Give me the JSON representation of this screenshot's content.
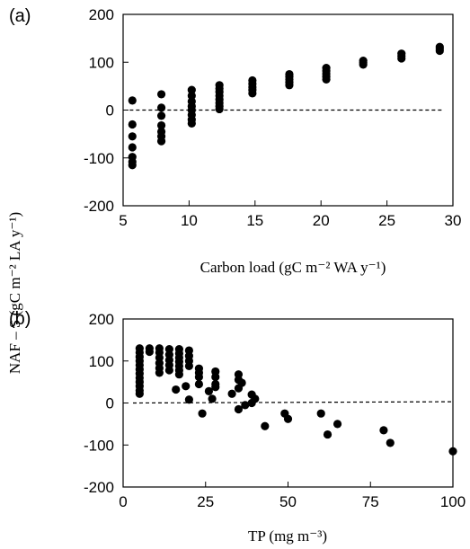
{
  "ylabel_shared": "NAF – S  (gC m⁻² LA y⁻¹)",
  "chart_data": [
    {
      "type": "scatter",
      "panel_label": "(a)",
      "xlabel": "Carbon load (gC m⁻² WA y⁻¹)",
      "ylabel": "NAF – S  (gC m⁻² LA y⁻¹)",
      "xlim": [
        5,
        30
      ],
      "ylim": [
        -200,
        200
      ],
      "xticks": [
        5,
        10,
        15,
        20,
        25,
        30
      ],
      "yticks": [
        -200,
        -100,
        0,
        100,
        200
      ],
      "reference_line": {
        "y": 0,
        "style": "dashed",
        "x_from": 5.5,
        "x_to": 29.2
      },
      "grid": false,
      "points": [
        {
          "x": 5.7,
          "y": 20
        },
        {
          "x": 5.7,
          "y": -30
        },
        {
          "x": 5.7,
          "y": -55
        },
        {
          "x": 5.7,
          "y": -78
        },
        {
          "x": 5.7,
          "y": -98
        },
        {
          "x": 5.7,
          "y": -108
        },
        {
          "x": 5.7,
          "y": -115
        },
        {
          "x": 7.9,
          "y": 33
        },
        {
          "x": 7.9,
          "y": 5
        },
        {
          "x": 7.9,
          "y": -12
        },
        {
          "x": 7.9,
          "y": -32
        },
        {
          "x": 7.9,
          "y": -45
        },
        {
          "x": 7.9,
          "y": -55
        },
        {
          "x": 7.9,
          "y": -65
        },
        {
          "x": 10.2,
          "y": 42
        },
        {
          "x": 10.2,
          "y": 30
        },
        {
          "x": 10.2,
          "y": 18
        },
        {
          "x": 10.2,
          "y": 8
        },
        {
          "x": 10.2,
          "y": 0
        },
        {
          "x": 10.2,
          "y": -10
        },
        {
          "x": 10.2,
          "y": -20
        },
        {
          "x": 10.2,
          "y": -28
        },
        {
          "x": 12.3,
          "y": 52
        },
        {
          "x": 12.3,
          "y": 45
        },
        {
          "x": 12.3,
          "y": 38
        },
        {
          "x": 12.3,
          "y": 30
        },
        {
          "x": 12.3,
          "y": 22
        },
        {
          "x": 12.3,
          "y": 15
        },
        {
          "x": 12.3,
          "y": 8
        },
        {
          "x": 12.3,
          "y": 2
        },
        {
          "x": 14.8,
          "y": 62
        },
        {
          "x": 14.8,
          "y": 55
        },
        {
          "x": 14.8,
          "y": 48
        },
        {
          "x": 14.8,
          "y": 42
        },
        {
          "x": 14.8,
          "y": 35
        },
        {
          "x": 17.6,
          "y": 75
        },
        {
          "x": 17.6,
          "y": 70
        },
        {
          "x": 17.6,
          "y": 64
        },
        {
          "x": 17.6,
          "y": 58
        },
        {
          "x": 17.6,
          "y": 52
        },
        {
          "x": 20.4,
          "y": 88
        },
        {
          "x": 20.4,
          "y": 82
        },
        {
          "x": 20.4,
          "y": 76
        },
        {
          "x": 20.4,
          "y": 70
        },
        {
          "x": 20.4,
          "y": 64
        },
        {
          "x": 23.2,
          "y": 103
        },
        {
          "x": 23.2,
          "y": 99
        },
        {
          "x": 23.2,
          "y": 95
        },
        {
          "x": 26.1,
          "y": 118
        },
        {
          "x": 26.1,
          "y": 113
        },
        {
          "x": 26.1,
          "y": 108
        },
        {
          "x": 29.0,
          "y": 132
        },
        {
          "x": 29.0,
          "y": 128
        },
        {
          "x": 29.0,
          "y": 124
        }
      ]
    },
    {
      "type": "scatter",
      "panel_label": "(b)",
      "xlabel": "TP (mg m⁻³)",
      "ylabel": "NAF – S  (gC m⁻² LA y⁻¹)",
      "xlim": [
        0,
        100
      ],
      "ylim": [
        -200,
        200
      ],
      "xticks": [
        0,
        25,
        50,
        75,
        100
      ],
      "yticks": [
        -200,
        -100,
        0,
        100,
        200
      ],
      "reference_line": {
        "y": 0,
        "style": "dashed",
        "x_from": 3,
        "x_to": 100,
        "y_end": 3
      },
      "grid": false,
      "points": [
        {
          "x": 5,
          "y": 130
        },
        {
          "x": 5,
          "y": 120
        },
        {
          "x": 5,
          "y": 110
        },
        {
          "x": 5,
          "y": 100
        },
        {
          "x": 5,
          "y": 90
        },
        {
          "x": 5,
          "y": 80
        },
        {
          "x": 5,
          "y": 70
        },
        {
          "x": 5,
          "y": 60
        },
        {
          "x": 5,
          "y": 50
        },
        {
          "x": 5,
          "y": 40
        },
        {
          "x": 5,
          "y": 30
        },
        {
          "x": 5,
          "y": 22
        },
        {
          "x": 8,
          "y": 130
        },
        {
          "x": 8,
          "y": 122
        },
        {
          "x": 11,
          "y": 130
        },
        {
          "x": 11,
          "y": 120
        },
        {
          "x": 11,
          "y": 108
        },
        {
          "x": 11,
          "y": 95
        },
        {
          "x": 11,
          "y": 83
        },
        {
          "x": 11,
          "y": 72
        },
        {
          "x": 14,
          "y": 128
        },
        {
          "x": 14,
          "y": 115
        },
        {
          "x": 14,
          "y": 102
        },
        {
          "x": 14,
          "y": 90
        },
        {
          "x": 14,
          "y": 78
        },
        {
          "x": 16,
          "y": 32
        },
        {
          "x": 17,
          "y": 128
        },
        {
          "x": 17,
          "y": 118
        },
        {
          "x": 17,
          "y": 108
        },
        {
          "x": 17,
          "y": 98
        },
        {
          "x": 17,
          "y": 88
        },
        {
          "x": 17,
          "y": 78
        },
        {
          "x": 17,
          "y": 68
        },
        {
          "x": 19,
          "y": 40
        },
        {
          "x": 20,
          "y": 125
        },
        {
          "x": 20,
          "y": 112
        },
        {
          "x": 20,
          "y": 100
        },
        {
          "x": 20,
          "y": 88
        },
        {
          "x": 20,
          "y": 8
        },
        {
          "x": 23,
          "y": 82
        },
        {
          "x": 23,
          "y": 72
        },
        {
          "x": 23,
          "y": 62
        },
        {
          "x": 23,
          "y": 45
        },
        {
          "x": 24,
          "y": -25
        },
        {
          "x": 26,
          "y": 28
        },
        {
          "x": 27,
          "y": 10
        },
        {
          "x": 28,
          "y": 75
        },
        {
          "x": 28,
          "y": 62
        },
        {
          "x": 28,
          "y": 45
        },
        {
          "x": 28,
          "y": 38
        },
        {
          "x": 33,
          "y": 22
        },
        {
          "x": 35,
          "y": 68
        },
        {
          "x": 35,
          "y": 55
        },
        {
          "x": 35,
          "y": 35
        },
        {
          "x": 35,
          "y": -15
        },
        {
          "x": 36,
          "y": 48
        },
        {
          "x": 37,
          "y": -5
        },
        {
          "x": 39,
          "y": 20
        },
        {
          "x": 39,
          "y": 0
        },
        {
          "x": 40,
          "y": 10
        },
        {
          "x": 43,
          "y": -55
        },
        {
          "x": 49,
          "y": -25
        },
        {
          "x": 50,
          "y": -38
        },
        {
          "x": 60,
          "y": -25
        },
        {
          "x": 62,
          "y": -75
        },
        {
          "x": 65,
          "y": -50
        },
        {
          "x": 79,
          "y": -65
        },
        {
          "x": 81,
          "y": -95
        },
        {
          "x": 100,
          "y": -115
        }
      ]
    }
  ]
}
